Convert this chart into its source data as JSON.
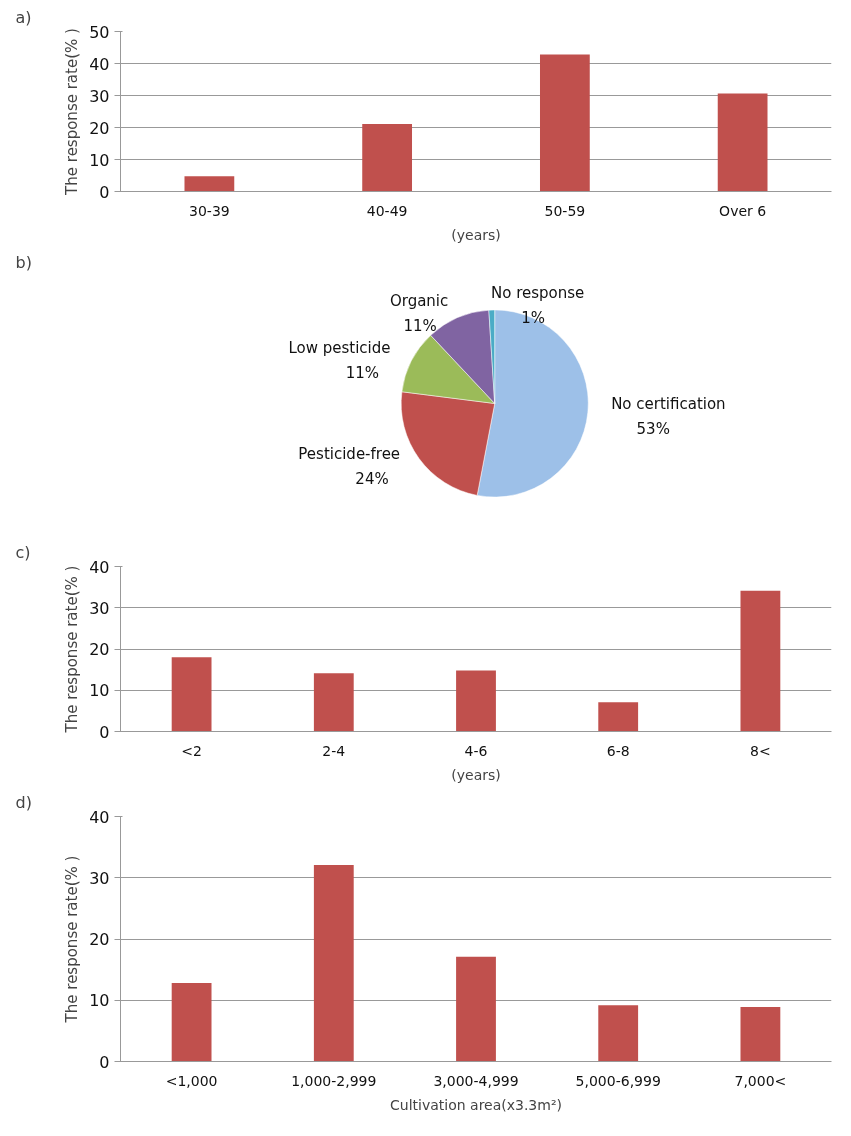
{
  "chart_data": [
    {
      "type": "bar",
      "annotations": [
        "a)"
      ],
      "xlabel": "(years)",
      "ylabel": "The response rate(% )",
      "categories": [
        "30-39",
        "40-49",
        "50-59",
        "Over 6"
      ],
      "values": [
        4.8,
        21.1,
        42.8,
        30.6
      ],
      "color": "#c0504d",
      "ylim": [
        0,
        50
      ],
      "yticks": [
        0,
        10,
        20,
        30,
        40,
        50
      ],
      "grid": "y"
    },
    {
      "type": "pie",
      "annotations": [
        "b)"
      ],
      "categories": [
        "No certification",
        "Pesticide-free",
        "Low pesticide",
        "Organic",
        "No response"
      ],
      "values": [
        53,
        24,
        11,
        11,
        1
      ],
      "colors": [
        "#9dc0e8",
        "#c0504d",
        "#9bbb59",
        "#8064a2",
        "#4bacc6"
      ],
      "value_labels": [
        "53%",
        "24%",
        "11%",
        "11%",
        "1%"
      ]
    },
    {
      "type": "bar",
      "annotations": [
        "c)"
      ],
      "xlabel": "(years)",
      "ylabel": "The response rate(% )",
      "categories": [
        "<2",
        "2-4",
        "4-6",
        "6-8",
        "8<"
      ],
      "values": [
        18.0,
        14.1,
        14.8,
        7.1,
        34.1
      ],
      "color": "#c0504d",
      "ylim": [
        0,
        40
      ],
      "yticks": [
        0,
        10,
        20,
        30,
        40
      ],
      "grid": "y"
    },
    {
      "type": "bar",
      "annotations": [
        "d)"
      ],
      "xlabel": "Cultivation area(x3.3m²)",
      "ylabel": "The response rate(% )",
      "categories": [
        "<1,000",
        "1,000-2,999",
        "3,000-4,999",
        "5,000-6,999",
        "7,000<"
      ],
      "values": [
        12.8,
        32.1,
        17.1,
        9.2,
        8.9
      ],
      "color": "#c0504d",
      "ylim": [
        0,
        40
      ],
      "yticks": [
        0,
        10,
        20,
        30,
        40
      ],
      "grid": "y"
    }
  ]
}
